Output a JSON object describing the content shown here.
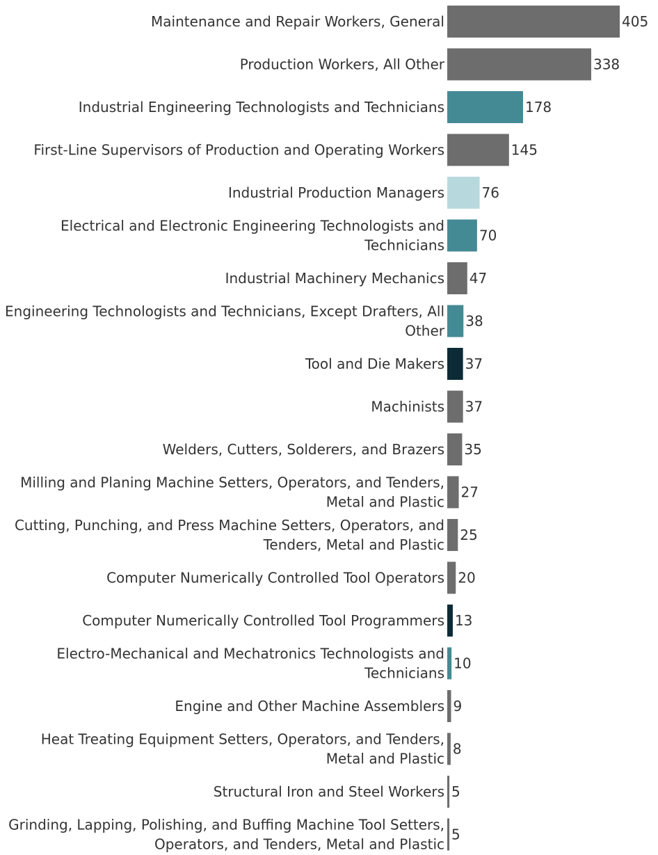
{
  "chart_data": {
    "type": "bar",
    "orientation": "horizontal",
    "title": "",
    "xlabel": "",
    "ylabel": "",
    "xlim": [
      0,
      405
    ],
    "grid": false,
    "legend": "none",
    "categories": [
      [
        "Maintenance and Repair Workers, General"
      ],
      [
        "Production Workers, All Other"
      ],
      [
        "Industrial Engineering Technologists and Technicians"
      ],
      [
        "First-Line Supervisors of Production and Operating Workers"
      ],
      [
        "Industrial Production Managers"
      ],
      [
        "Electrical and Electronic Engineering Technologists and",
        "Technicians"
      ],
      [
        "Industrial Machinery Mechanics"
      ],
      [
        "Engineering Technologists and Technicians, Except Drafters, All",
        "Other"
      ],
      [
        "Tool and Die Makers"
      ],
      [
        "Machinists"
      ],
      [
        "Welders, Cutters, Solderers, and Brazers"
      ],
      [
        "Milling and Planing Machine Setters, Operators, and Tenders,",
        "Metal and Plastic"
      ],
      [
        "Cutting, Punching, and Press Machine Setters, Operators, and",
        "Tenders, Metal and Plastic"
      ],
      [
        "Computer Numerically Controlled Tool Operators"
      ],
      [
        "Computer Numerically Controlled Tool Programmers"
      ],
      [
        "Electro-Mechanical and Mechatronics Technologists and",
        "Technicians"
      ],
      [
        "Engine and Other Machine Assemblers"
      ],
      [
        "Heat Treating Equipment Setters, Operators, and Tenders,",
        "Metal and Plastic"
      ],
      [
        "Structural Iron and Steel Workers"
      ],
      [
        "Grinding, Lapping, Polishing, and Buffing Machine Tool Setters,",
        "Operators, and Tenders, Metal and Plastic"
      ]
    ],
    "values": [
      405,
      338,
      178,
      145,
      76,
      70,
      47,
      38,
      37,
      37,
      35,
      27,
      25,
      20,
      13,
      10,
      9,
      8,
      5,
      5
    ],
    "bar_colors": [
      "#6d6d6d",
      "#6d6d6d",
      "#448a95",
      "#6d6d6d",
      "#b7d9de",
      "#448a95",
      "#6d6d6d",
      "#448a95",
      "#0c2b37",
      "#6d6d6d",
      "#6d6d6d",
      "#6d6d6d",
      "#6d6d6d",
      "#6d6d6d",
      "#0c2b37",
      "#448a95",
      "#6d6d6d",
      "#6d6d6d",
      "#6d6d6d",
      "#6d6d6d"
    ]
  }
}
